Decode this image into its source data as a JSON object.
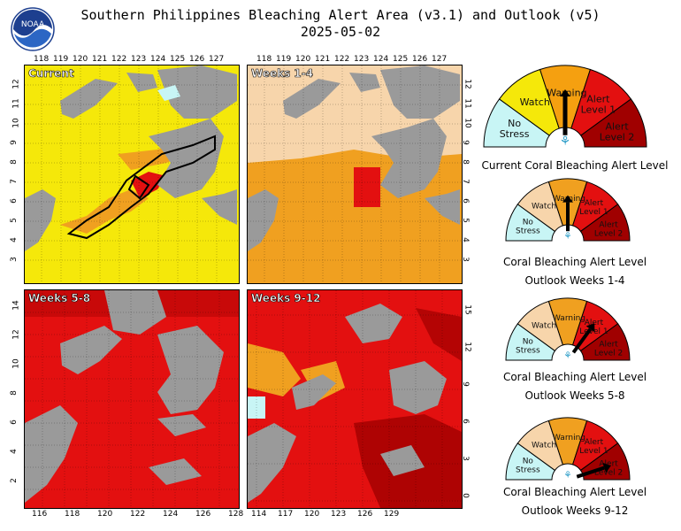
{
  "header": {
    "title_line1": "Southern Philippines Bleaching Alert Area (v3.1) and Outlook (v5)",
    "title_line2": "2025-05-02",
    "logo_text": "NOAA"
  },
  "panels": [
    {
      "label": "Current",
      "fill": "#f5e80a"
    },
    {
      "label": "Weeks 1-4",
      "fill": "#f7d5ab"
    },
    {
      "label": "Weeks 5-8",
      "fill": "#e31010"
    },
    {
      "label": "Weeks 9-12",
      "fill": "#e31010"
    }
  ],
  "axes": {
    "top_lon": [
      "118",
      "119",
      "120",
      "121",
      "122",
      "123",
      "124",
      "125",
      "126",
      "127"
    ],
    "top_lon_right": [
      "118",
      "119",
      "120",
      "121",
      "122",
      "123",
      "124",
      "125",
      "126",
      "127"
    ],
    "left_lat_top": [
      "12",
      "11",
      "10",
      "9",
      "8",
      "7",
      "6",
      "5",
      "4",
      "3"
    ],
    "right_lat_top": [
      "12",
      "11",
      "10",
      "9",
      "8",
      "7",
      "6",
      "5",
      "4",
      "3"
    ],
    "bottom_lon_left": [
      "116",
      "118",
      "120",
      "122",
      "124",
      "126",
      "128"
    ],
    "bottom_lon_right": [
      "114",
      "117",
      "120",
      "123",
      "126",
      "129"
    ],
    "left_lat_bottom": [
      "14",
      "12",
      "10",
      "8",
      "6",
      "4",
      "2"
    ],
    "right_lat_bottom": [
      "15",
      "12",
      "9",
      "6",
      "3",
      "0"
    ]
  },
  "gauge_labels": {
    "no_stress": [
      "No",
      "Stress"
    ],
    "watch": "Watch",
    "warning": "Warning",
    "alert1": [
      "Alert",
      "Level 1"
    ],
    "alert2": [
      "Alert",
      "Level 2"
    ]
  },
  "gauges": [
    {
      "caption1": "Current Coral Bleaching Alert Level",
      "caption2": "",
      "needle_level": "Warning",
      "watch_color": "#f5e80a"
    },
    {
      "caption1": "Coral Bleaching Alert Level",
      "caption2": "Outlook Weeks 1-4",
      "needle_level": "Warning",
      "watch_color": "#f7d5ab"
    },
    {
      "caption1": "Coral Bleaching Alert Level",
      "caption2": "Outlook Weeks 5-8",
      "needle_level": "Alert Level 1",
      "watch_color": "#f7d5ab"
    },
    {
      "caption1": "Coral Bleaching Alert Level",
      "caption2": "Outlook Weeks 9-12",
      "needle_level": "Alert Level 2",
      "watch_color": "#f7d5ab"
    }
  ],
  "colors": {
    "no_stress": "#c8f5f5",
    "watch": "#f5e80a",
    "warning": "#f5a010",
    "alert1": "#e31010",
    "alert2": "#a00000",
    "land": "#9a9a9a",
    "outlook_watch": "#f7d5ab",
    "outlook_warning": "#f0a020"
  }
}
